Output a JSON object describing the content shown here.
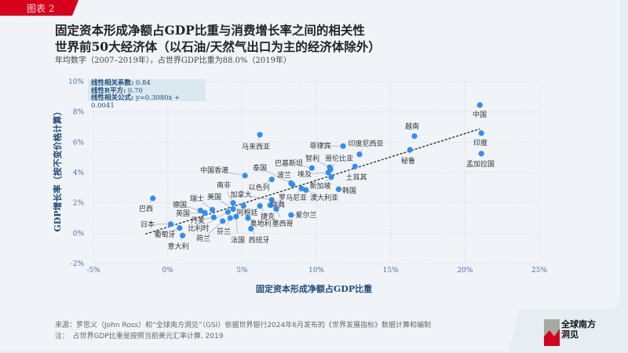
{
  "header": {
    "tag": "图表 2",
    "title_line1": "固定资本形成净额占GDP比重与消费增长率之间的相关性",
    "title_line2": "世界前50大经济体（以石油/天然气出口为主的经济体除外）",
    "subtitle": "年均数字（2007–2019年），占世界GDP比重为88.0%（2019年）"
  },
  "stats": {
    "r_label": "线性相关系数:",
    "r_value": "0.84",
    "r2_label": "线性R平方:",
    "r2_value": "0.70",
    "eq_label": "线性相关公式:",
    "eq_value": "y=0.3080x + 0.0041"
  },
  "footer": {
    "source": "来源：罗思义（John Ross）和“全球南方洞见”（GSI）依据世界银行2024年6月发布的《世界发展指标》数据计算和编制",
    "note": "注：　占世界GDP比重是按照当前美元汇率计算, 2019"
  },
  "logo": {
    "line1": "全球南方",
    "line2": "洞见"
  },
  "colors": {
    "accent": "#d7001c",
    "point": "#2e8ff0",
    "axis_text": "#4a6fa5",
    "title_blue": "#1e4a7a"
  },
  "chart_data": {
    "type": "scatter",
    "xlabel": "固定资本形成净额占GDP比重",
    "ylabel": "GDP增长率（按不变价格计算）",
    "xlim": [
      -5,
      25
    ],
    "ylim": [
      -2,
      10
    ],
    "xticks": [
      "-5%",
      "0%",
      "5%",
      "10%",
      "15%",
      "20%",
      "25%"
    ],
    "yticks": [
      "-2%",
      "0%",
      "2%",
      "4%",
      "6%",
      "8%",
      "10%"
    ],
    "grid": true,
    "trendline": {
      "slope": 0.308,
      "intercept": 0.41,
      "style": "dashed"
    },
    "points": [
      {
        "name": "中国",
        "x": 21.0,
        "y": 8.45
      },
      {
        "name": "印度",
        "x": 21.1,
        "y": 6.6
      },
      {
        "name": "孟加拉国",
        "x": 21.1,
        "y": 5.25
      },
      {
        "name": "越南",
        "x": 16.6,
        "y": 6.4
      },
      {
        "name": "秘鲁",
        "x": 16.3,
        "y": 5.5
      },
      {
        "name": "印度尼西亚",
        "x": 12.9,
        "y": 5.2
      },
      {
        "name": "菲律宾",
        "x": 11.8,
        "y": 5.75
      },
      {
        "name": "土耳其",
        "x": 12.6,
        "y": 4.4
      },
      {
        "name": "巴基斯坦",
        "x": 9.7,
        "y": 4.3
      },
      {
        "name": "智利",
        "x": 10.9,
        "y": 4.35
      },
      {
        "name": "哥伦比亚",
        "x": 10.95,
        "y": 4.2
      },
      {
        "name": "埃及",
        "x": 10.8,
        "y": 4.0
      },
      {
        "name": "新加坡",
        "x": 11.0,
        "y": 3.7
      },
      {
        "name": "韩国",
        "x": 11.5,
        "y": 2.9
      },
      {
        "name": "罗马尼亚",
        "x": 9.0,
        "y": 2.95
      },
      {
        "name": "澳大利亚",
        "x": 9.3,
        "y": 2.85
      },
      {
        "name": "泰国",
        "x": 8.3,
        "y": 3.3
      },
      {
        "name": "波兰",
        "x": 8.4,
        "y": 3.2
      },
      {
        "name": "以色列",
        "x": 7.0,
        "y": 3.55
      },
      {
        "name": "马来西亚",
        "x": 6.2,
        "y": 6.5
      },
      {
        "name": "中国香港",
        "x": 5.2,
        "y": 3.8
      },
      {
        "name": "加拿大",
        "x": 7.0,
        "y": 2.2
      },
      {
        "name": "瑞典",
        "x": 6.9,
        "y": 1.85
      },
      {
        "name": "捷克",
        "x": 6.2,
        "y": 1.8
      },
      {
        "name": "墨西哥",
        "x": 7.3,
        "y": 1.6
      },
      {
        "name": "爱尔兰",
        "x": 8.3,
        "y": 1.2
      },
      {
        "name": "阿根廷",
        "x": 5.1,
        "y": 1.8
      },
      {
        "name": "奥地利",
        "x": 5.4,
        "y": 1.0
      },
      {
        "name": "西班牙",
        "x": 5.6,
        "y": 0.3
      },
      {
        "name": "南非",
        "x": 4.4,
        "y": 2.0
      },
      {
        "name": "美国",
        "x": 4.4,
        "y": 1.6
      },
      {
        "name": "比利时",
        "x": 4.05,
        "y": 1.4
      },
      {
        "name": "丹麦",
        "x": 3.1,
        "y": 1.05
      },
      {
        "name": "荷兰",
        "x": 3.7,
        "y": 0.8
      },
      {
        "name": "芬兰",
        "x": 4.2,
        "y": 1.0
      },
      {
        "name": "法国",
        "x": 4.6,
        "y": 1.1
      },
      {
        "name": "瑞士",
        "x": 3.0,
        "y": 1.55
      },
      {
        "name": "德国",
        "x": 2.2,
        "y": 1.5
      },
      {
        "name": "英国",
        "x": 2.5,
        "y": 1.35
      },
      {
        "name": "巴西",
        "x": -1.0,
        "y": 2.3
      },
      {
        "name": "日本",
        "x": 0.2,
        "y": 0.6
      },
      {
        "name": "葡萄牙",
        "x": 0.8,
        "y": 0.35
      },
      {
        "name": "意大利",
        "x": 1.0,
        "y": -0.15
      }
    ]
  }
}
